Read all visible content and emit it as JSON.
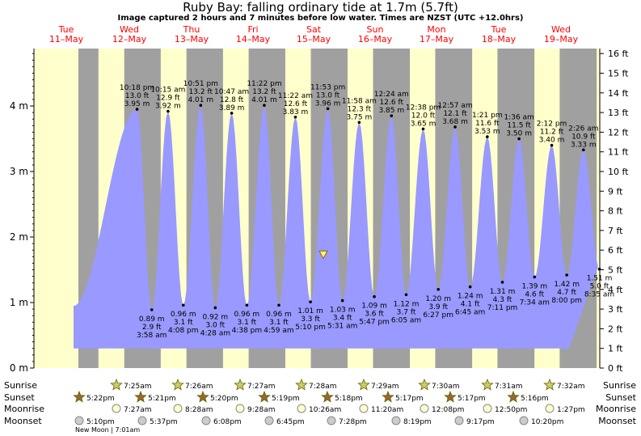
{
  "title": "Ruby Bay: falling  ordinary tide at 1.7m (5.7ft)",
  "subtitle": "Image captured 2 hours and 7 minutes before low water. Times are NZST (UTC +12.0hrs)",
  "colors": {
    "night": "#a0a0a0",
    "day": "#ffffcc",
    "water": "#9999ff",
    "day_label": "#ff0000"
  },
  "days": [
    {
      "dow": "Tue",
      "date": "11–May"
    },
    {
      "dow": "Wed",
      "date": "12–May"
    },
    {
      "dow": "Thu",
      "date": "13–May"
    },
    {
      "dow": "Fri",
      "date": "14–May"
    },
    {
      "dow": "Sat",
      "date": "15–May"
    },
    {
      "dow": "Sun",
      "date": "16–May"
    },
    {
      "dow": "Mon",
      "date": "17–May"
    },
    {
      "dow": "Tue",
      "date": "18–May"
    },
    {
      "dow": "Wed",
      "date": "19–May"
    }
  ],
  "chart_data": {
    "type": "area",
    "y_left_unit": "m",
    "y_right_unit": "ft",
    "ylim_m": [
      0,
      4.877
    ],
    "y_left_ticks": [
      "0 m",
      "1 m",
      "2 m",
      "3 m",
      "4 m"
    ],
    "y_right_ticks": [
      "0 ft",
      "1 ft",
      "2 ft",
      "3 ft",
      "4 ft",
      "5 ft",
      "6 ft",
      "7 ft",
      "8 ft",
      "9 ft",
      "10 ft",
      "11 ft",
      "12 ft",
      "13 ft",
      "14 ft",
      "15 ft",
      "16 ft"
    ],
    "current_level_m": 1.7,
    "tides": [
      {
        "kind": "high",
        "time": "10:18 pm",
        "ft": "13.0 ft",
        "m": 3.95
      },
      {
        "kind": "low",
        "time": "3:58 am",
        "ft": "2.9 ft",
        "m": 0.89
      },
      {
        "kind": "high",
        "time": "10:15 am",
        "ft": "12.9 ft",
        "m": 3.92
      },
      {
        "kind": "low",
        "time": "4:08 pm",
        "ft": "3.1 ft",
        "m": 0.96
      },
      {
        "kind": "high",
        "time": "10:51 pm",
        "ft": "13.2 ft",
        "m": 4.01
      },
      {
        "kind": "low",
        "time": "4:28 am",
        "ft": "3.0 ft",
        "m": 0.92
      },
      {
        "kind": "high",
        "time": "10:47 am",
        "ft": "12.8 ft",
        "m": 3.89
      },
      {
        "kind": "low",
        "time": "4:38 pm",
        "ft": "3.1 ft",
        "m": 0.96
      },
      {
        "kind": "high",
        "time": "11:22 pm",
        "ft": "13.2 ft",
        "m": 4.01
      },
      {
        "kind": "low",
        "time": "4:59 am",
        "ft": "3.1 ft",
        "m": 0.96
      },
      {
        "kind": "high",
        "time": "11:22 am",
        "ft": "12.6 ft",
        "m": 3.83
      },
      {
        "kind": "low",
        "time": "5:10 pm",
        "ft": "3.3 ft",
        "m": 1.01
      },
      {
        "kind": "high",
        "time": "11:53 pm",
        "ft": "13.0 ft",
        "m": 3.96
      },
      {
        "kind": "low",
        "time": "5:31 am",
        "ft": "3.4 ft",
        "m": 1.03
      },
      {
        "kind": "high",
        "time": "11:58 am",
        "ft": "12.3 ft",
        "m": 3.75
      },
      {
        "kind": "low",
        "time": "5:47 pm",
        "ft": "3.6 ft",
        "m": 1.09
      },
      {
        "kind": "high",
        "time": "12:24 am",
        "ft": "12.6 ft",
        "m": 3.85
      },
      {
        "kind": "low",
        "time": "6:05 am",
        "ft": "3.7 ft",
        "m": 1.12
      },
      {
        "kind": "high",
        "time": "12:38 pm",
        "ft": "12.0 ft",
        "m": 3.65
      },
      {
        "kind": "low",
        "time": "6:27 pm",
        "ft": "3.9 ft",
        "m": 1.2
      },
      {
        "kind": "high",
        "time": "12:57 am",
        "ft": "12.1 ft",
        "m": 3.68
      },
      {
        "kind": "low",
        "time": "6:45 am",
        "ft": "4.1 ft",
        "m": 1.24
      },
      {
        "kind": "high",
        "time": "1:21 pm",
        "ft": "11.6 ft",
        "m": 3.53
      },
      {
        "kind": "low",
        "time": "7:11 pm",
        "ft": "4.3 ft",
        "m": 1.31
      },
      {
        "kind": "high",
        "time": "1:36 am",
        "ft": "11.5 ft",
        "m": 3.5
      },
      {
        "kind": "low",
        "time": "7:34 am",
        "ft": "4.6 ft",
        "m": 1.39
      },
      {
        "kind": "high",
        "time": "2:12 pm",
        "ft": "11.2 ft",
        "m": 3.4
      },
      {
        "kind": "low",
        "time": "8:00 pm",
        "ft": "4.7 ft",
        "m": 1.42
      },
      {
        "kind": "high",
        "time": "2:26 am",
        "ft": "10.9 ft",
        "m": 3.33
      },
      {
        "kind": "low",
        "time": "8:35 am",
        "ft": "5.0 ft",
        "m": 1.51
      }
    ]
  },
  "astro": {
    "row_labels": [
      "Sunrise",
      "Sunset",
      "Moonrise",
      "Moonset"
    ],
    "sunrise": [
      "7:25am",
      "7:26am",
      "7:27am",
      "7:28am",
      "7:29am",
      "7:30am",
      "7:31am",
      "7:32am"
    ],
    "sunset": [
      "5:22pm",
      "5:21pm",
      "5:20pm",
      "5:19pm",
      "5:18pm",
      "5:17pm",
      "5:17pm",
      "5:16pm"
    ],
    "moonrise": [
      "7:27am",
      "8:28am",
      "9:28am",
      "10:26am",
      "11:20am",
      "12:08pm",
      "12:50pm",
      "1:27pm"
    ],
    "moonset": [
      "5:10pm",
      "5:37pm",
      "6:08pm",
      "6:45pm",
      "7:28pm",
      "8:19pm",
      "9:17pm",
      "10:20pm"
    ],
    "phase_note": "New Moon | 7:01am"
  }
}
